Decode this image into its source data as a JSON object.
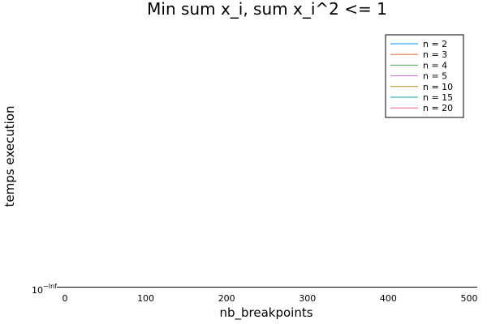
{
  "chart_data": {
    "type": "line",
    "title": "Min sum x_i, sum x_i^2 <= 1",
    "xlabel": "nb_breakpoints",
    "ylabel": "temps execution",
    "xlim": [
      -10,
      510
    ],
    "xticks": [
      0,
      100,
      200,
      300,
      400,
      500
    ],
    "y_tick_base": "10",
    "y_tick_exp": "−Inf",
    "y_scale": "log",
    "grid": false,
    "legend_position": "top-right",
    "series": [
      {
        "name": "n = 2",
        "color": "#009af9",
        "x": [],
        "y": []
      },
      {
        "name": "n = 3",
        "color": "#e26f46",
        "x": [],
        "y": []
      },
      {
        "name": "n = 4",
        "color": "#3da44d",
        "x": [],
        "y": []
      },
      {
        "name": "n = 5",
        "color": "#c271d2",
        "x": [],
        "y": []
      },
      {
        "name": "n = 10",
        "color": "#ac8d18",
        "x": [],
        "y": []
      },
      {
        "name": "n = 15",
        "color": "#00a9ad",
        "x": [],
        "y": []
      },
      {
        "name": "n = 20",
        "color": "#ed5d92",
        "x": [],
        "y": []
      }
    ]
  }
}
